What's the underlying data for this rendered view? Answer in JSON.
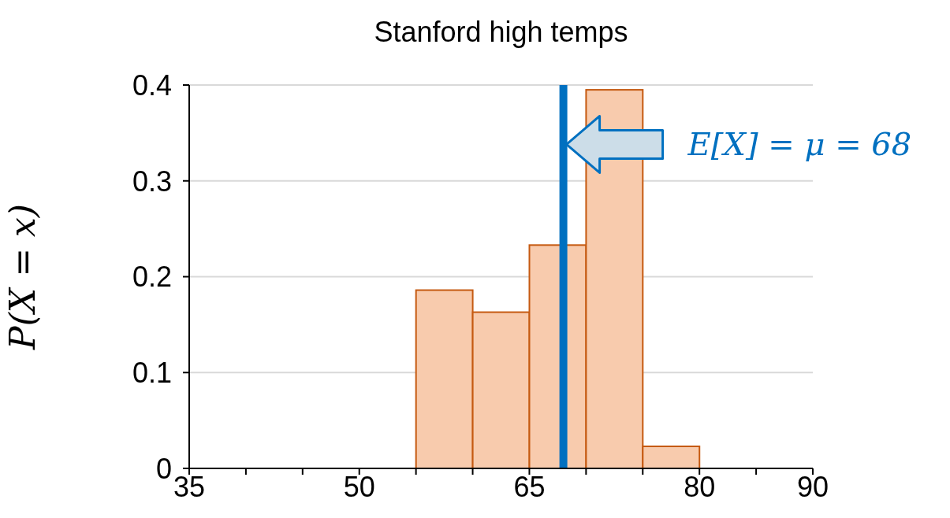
{
  "chart_data": {
    "type": "histogram",
    "title": "Stanford high temps",
    "ylabel": "P(X = x)",
    "bins": [
      55,
      60,
      65,
      70,
      75,
      80
    ],
    "values": [
      0.186,
      0.163,
      0.233,
      0.395,
      0.023
    ],
    "color": "#f8cbad",
    "xlim": [
      35,
      90
    ],
    "xticks": [
      35,
      {
        "value": 40,
        "label": null
      },
      {
        "value": 45,
        "label": null
      },
      50,
      {
        "value": 55,
        "label": null
      },
      {
        "value": 60,
        "label": null
      },
      65,
      {
        "value": 70,
        "label": null
      },
      {
        "value": 75,
        "label": null
      },
      80,
      {
        "value": 85,
        "label": null
      },
      90
    ],
    "ylim": [
      0,
      0.4
    ],
    "yticks": [
      0,
      0.1,
      0.2,
      0.3,
      0.4
    ],
    "grid": "y",
    "legend": false,
    "ref_lines": [
      {
        "axis": "x",
        "value": 68,
        "label": "E[X] = μ = 68",
        "color": "#0070c0"
      }
    ]
  }
}
